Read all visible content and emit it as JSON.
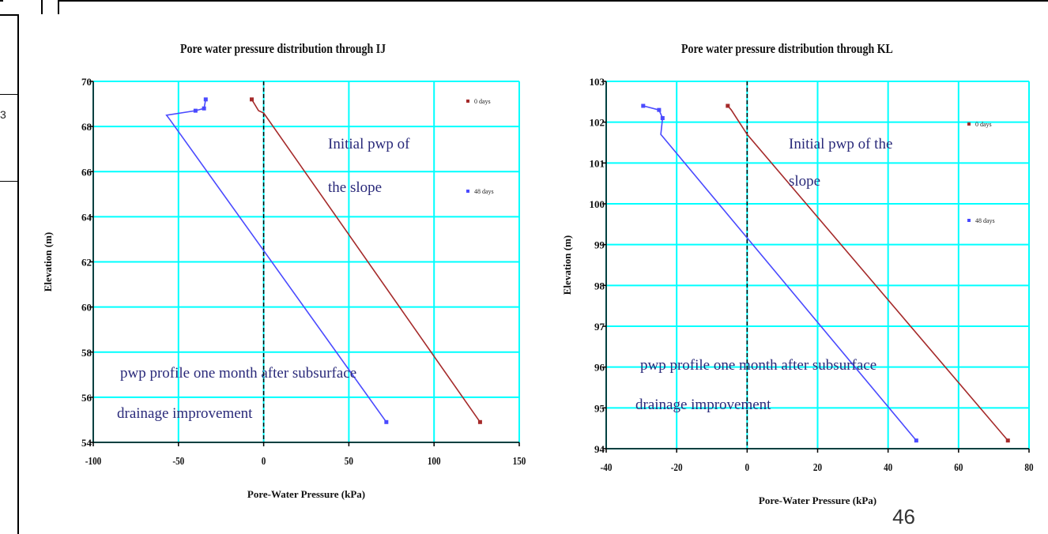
{
  "page_number": "46",
  "edge_digit": "3",
  "colors": {
    "grid": "#00ffff",
    "series_0": "#a52a2a",
    "series_48": "#4a4aff",
    "annotation": "#2a2a7a"
  },
  "chart_data": [
    {
      "type": "line",
      "title": "Pore water pressure distribution through IJ",
      "xlabel": "Pore-Water Pressure (kPa)",
      "ylabel": "Elevation (m)",
      "xlim": [
        -100,
        150
      ],
      "ylim": [
        54,
        70
      ],
      "xticks": [
        -100,
        -50,
        0,
        50,
        100,
        150
      ],
      "yticks": [
        54,
        56,
        58,
        60,
        62,
        64,
        66,
        68,
        70
      ],
      "xtick_labels": [
        "-100",
        "-50",
        "0",
        "50",
        "100",
        "150"
      ],
      "ytick_labels": [
        "54",
        "56",
        "58",
        "60",
        "62",
        "64",
        "66",
        "68",
        "70"
      ],
      "grid": true,
      "legend_position": "right",
      "series": [
        {
          "name": "0 days",
          "color": "#a52a2a",
          "x": [
            -7,
            -3,
            0,
            127
          ],
          "y": [
            69.2,
            68.7,
            68.6,
            54.9
          ]
        },
        {
          "name": "48 days",
          "color": "#4a4aff",
          "x": [
            -34,
            -35,
            -40,
            -57,
            -55,
            0,
            72
          ],
          "y": [
            69.2,
            68.8,
            68.7,
            68.5,
            68.3,
            62.5,
            54.9
          ]
        }
      ],
      "annotations": [
        {
          "lines": [
            "Initial  pwp  of",
            "the slope"
          ]
        },
        {
          "lines": [
            "pwp profile one month after subsurface",
            "drainage improvement"
          ]
        }
      ]
    },
    {
      "type": "line",
      "title": "Pore water pressure distribution through KL",
      "xlabel": "Pore-Water Pressure (kPa)",
      "ylabel": "Elevation (m)",
      "xlim": [
        -40,
        80
      ],
      "ylim": [
        94,
        103
      ],
      "xticks": [
        -40,
        -20,
        0,
        20,
        40,
        60,
        80
      ],
      "yticks": [
        94,
        95,
        96,
        97,
        98,
        99,
        100,
        101,
        102,
        103
      ],
      "xtick_labels": [
        "-40",
        "-20",
        "0",
        "20",
        "40",
        "60",
        "80"
      ],
      "ytick_labels": [
        "94",
        "95",
        "96",
        "97",
        "98",
        "99",
        "100",
        "101",
        "102",
        "103"
      ],
      "grid": true,
      "legend_position": "right",
      "series": [
        {
          "name": "0 days",
          "color": "#a52a2a",
          "x": [
            -5.5,
            -4.5,
            0,
            74
          ],
          "y": [
            102.4,
            102.3,
            101.7,
            94.2
          ]
        },
        {
          "name": "48 days",
          "color": "#4a4aff",
          "x": [
            -29.5,
            -25,
            -24,
            -24.5,
            48
          ],
          "y": [
            102.4,
            102.3,
            102.1,
            101.7,
            94.2
          ]
        }
      ],
      "annotations": [
        {
          "lines": [
            "Initial   pwp   of   the",
            "slope"
          ]
        },
        {
          "lines": [
            "pwp  profile one month after subsurface",
            "drainage improvement"
          ]
        }
      ]
    }
  ]
}
